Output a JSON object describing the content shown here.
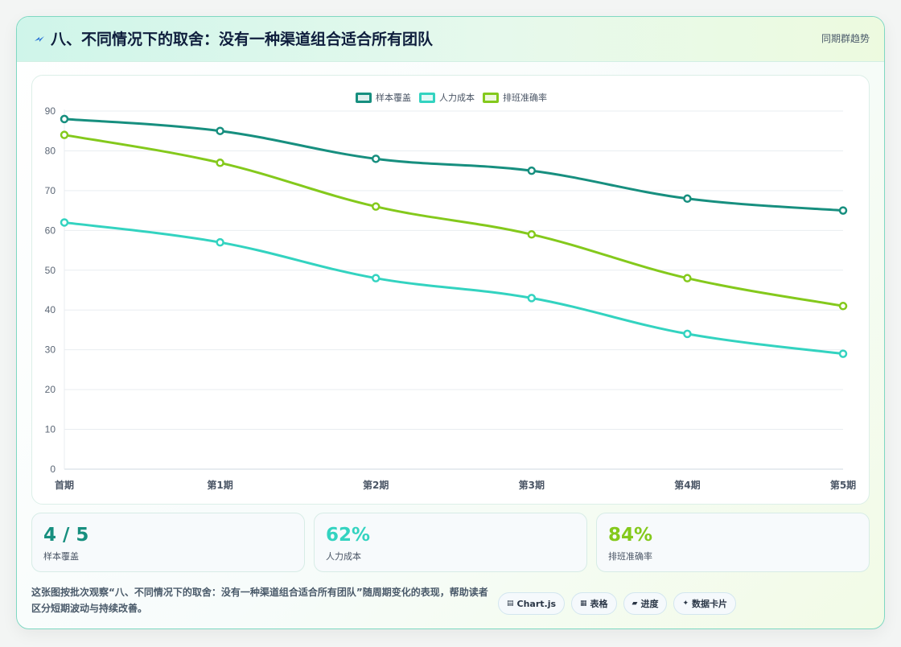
{
  "header": {
    "icon": "lightning-icon",
    "title": "八、不同情况下的取舍：没有一种渠道组合适合所有团队",
    "tag": "同期群趋势"
  },
  "chart_data": {
    "type": "line",
    "categories": [
      "首期",
      "第1期",
      "第2期",
      "第3期",
      "第4期",
      "第5期"
    ],
    "series": [
      {
        "name": "样本覆盖",
        "color": "#178f7f",
        "values": [
          88,
          85,
          78,
          75,
          68,
          65
        ]
      },
      {
        "name": "人力成本",
        "color": "#33d3c0",
        "values": [
          62,
          57,
          48,
          43,
          34,
          29
        ]
      },
      {
        "name": "排班准确率",
        "color": "#84c91c",
        "values": [
          84,
          77,
          66,
          59,
          48,
          41
        ]
      }
    ],
    "ylim": [
      0,
      90
    ],
    "yticks": [
      0,
      10,
      20,
      30,
      40,
      50,
      60,
      70,
      80,
      90
    ],
    "grid": true,
    "legend": "top-center"
  },
  "stats": [
    {
      "value": "4 / 5",
      "label": "样本覆盖",
      "color": "#178f7f"
    },
    {
      "value": "62%",
      "label": "人力成本",
      "color": "#33d3c0"
    },
    {
      "value": "84%",
      "label": "排班准确率",
      "color": "#84c91c"
    }
  ],
  "description": "这张图按批次观察“八、不同情况下的取舍：没有一种渠道组合适合所有团队”随周期变化的表现，帮助读者区分短期波动与持续改善。",
  "chips": [
    {
      "icon": "chart-icon",
      "glyph": "▤",
      "label": "Chart.js"
    },
    {
      "icon": "table-icon",
      "glyph": "▦",
      "label": "表格"
    },
    {
      "icon": "progress-icon",
      "glyph": "▰",
      "label": "进度"
    },
    {
      "icon": "sparkle-icon",
      "glyph": "✦",
      "label": "数据卡片"
    }
  ]
}
